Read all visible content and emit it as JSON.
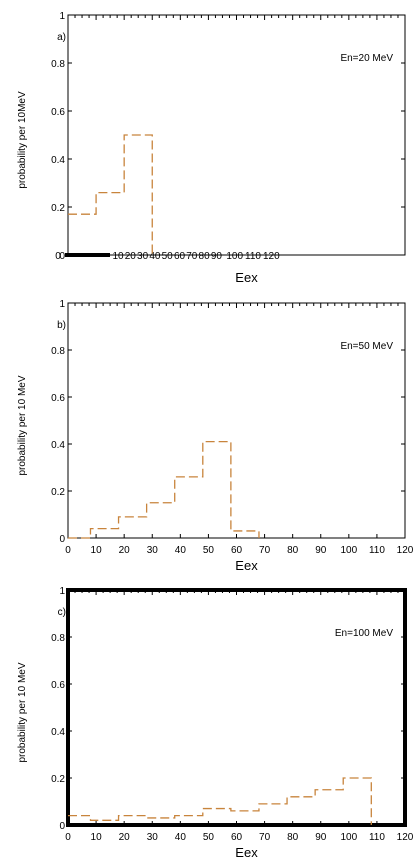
{
  "chart_data": [
    {
      "type": "bar",
      "panel_label": "a)",
      "annotation": "En=20 MeV",
      "xlabel": "Eex",
      "ylabel": "probability per 10MeV",
      "xlim": [
        0,
        120
      ],
      "ylim": [
        0,
        1
      ],
      "ytick_labels": [
        "0",
        "0.2",
        "0.4",
        "0.6",
        "0.8",
        "1"
      ],
      "xtick_labels": [
        "0",
        "10",
        "20",
        "30",
        "40",
        "50",
        "60",
        "70",
        "80",
        "90",
        "100",
        "110",
        "120"
      ],
      "bin_edges": [
        0,
        10,
        20,
        30
      ],
      "values": [
        0.17,
        0.26,
        0.5
      ],
      "series_color": "#c8843c"
    },
    {
      "type": "bar",
      "panel_label": "b)",
      "annotation": "En=50 MeV",
      "xlabel": "Eex",
      "ylabel": "probability per 10 MeV",
      "xlim": [
        0,
        120
      ],
      "ylim": [
        0,
        1
      ],
      "ytick_labels": [
        "0",
        "0.2",
        "0.4",
        "0.6",
        "0.8",
        "1"
      ],
      "xtick_labels": [
        "0",
        "10",
        "20",
        "30",
        "40",
        "50",
        "60",
        "70",
        "80",
        "90",
        "100",
        "110",
        "120"
      ],
      "bin_edges": [
        0,
        8,
        18,
        28,
        38,
        48,
        58,
        68
      ],
      "values": [
        0.0,
        0.04,
        0.09,
        0.15,
        0.26,
        0.41,
        0.03
      ],
      "series_color": "#c8843c"
    },
    {
      "type": "bar",
      "panel_label": "c)",
      "annotation": "En=100 MeV",
      "xlabel": "Eex",
      "ylabel": "probability per 10 MeV",
      "xlim": [
        0,
        120
      ],
      "ylim": [
        0,
        1
      ],
      "ytick_labels": [
        "0",
        "0.2",
        "0.4",
        "0.6",
        "0.8",
        "1"
      ],
      "xtick_labels": [
        "0",
        "10",
        "20",
        "30",
        "40",
        "50",
        "60",
        "70",
        "80",
        "90",
        "100",
        "110",
        "120"
      ],
      "bin_edges": [
        0,
        8,
        18,
        28,
        38,
        48,
        58,
        68,
        78,
        88,
        98,
        108
      ],
      "values": [
        0.04,
        0.02,
        0.04,
        0.03,
        0.04,
        0.07,
        0.06,
        0.09,
        0.12,
        0.15,
        0.2
      ],
      "series_color": "#c8843c"
    }
  ]
}
